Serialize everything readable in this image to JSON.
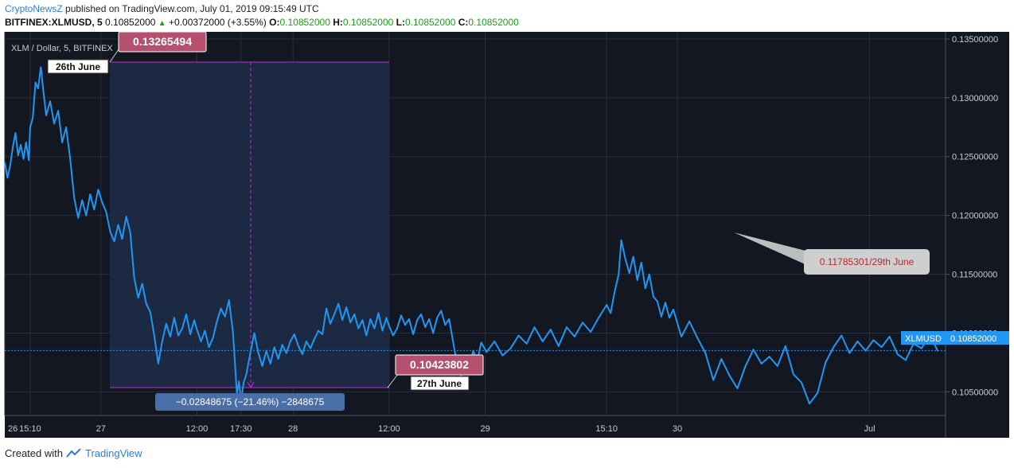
{
  "header": {
    "author": "CryptoNewsZ",
    "published": "published on TradingView.com, July 01, 2019 09:15:49 UTC",
    "symbol": "BITFINEX:XLMUSD, 5",
    "last": "0.10852000",
    "change": "+0.00372000 (+3.55%)",
    "o_label": "O:",
    "o_value": "0.10852000",
    "h_label": "H:",
    "h_value": "0.10852000",
    "l_label": "L:",
    "l_value": "0.10852000",
    "c_label": "C:",
    "c_value": "0.10852000"
  },
  "footer": {
    "created_with": "Created with",
    "brand": "TradingView"
  },
  "colors": {
    "background": "#131722",
    "line": "#2196f3",
    "measure_fill": "#1e2b46",
    "measure_line": "#c42bd6",
    "label_box": "#b5506e",
    "grid": "#2a2e39",
    "price_tag": "#2196f3"
  },
  "chart_data": {
    "type": "line",
    "title": "XLM / Dollar, 5, BITFINEX",
    "series": [
      {
        "name": "XLMUSD",
        "points": [
          [
            "26 Jun 12:00",
            0.1245
          ],
          [
            "26 Jun 12:20",
            0.1232
          ],
          [
            "26 Jun 12:40",
            0.1242
          ],
          [
            "26 Jun 13:00",
            0.1258
          ],
          [
            "26 Jun 13:20",
            0.127
          ],
          [
            "26 Jun 13:40",
            0.1251
          ],
          [
            "26 Jun 14:00",
            0.126
          ],
          [
            "26 Jun 14:20",
            0.1248
          ],
          [
            "26 Jun 14:40",
            0.1262
          ],
          [
            "26 Jun 15:00",
            0.1247
          ],
          [
            "26 Jun 15:10",
            0.1275
          ],
          [
            "26 Jun 15:30",
            0.1283
          ],
          [
            "26 Jun 15:50",
            0.1313
          ],
          [
            "26 Jun 16:10",
            0.1308
          ],
          [
            "26 Jun 16:30",
            0.1326
          ],
          [
            "26 Jun 16:50",
            0.1305
          ],
          [
            "26 Jun 17:10",
            0.1285
          ],
          [
            "26 Jun 17:40",
            0.1297
          ],
          [
            "26 Jun 18:10",
            0.1278
          ],
          [
            "26 Jun 18:40",
            0.1289
          ],
          [
            "26 Jun 19:10",
            0.1262
          ],
          [
            "26 Jun 19:40",
            0.1275
          ],
          [
            "26 Jun 20:10",
            0.1248
          ],
          [
            "26 Jun 20:40",
            0.1215
          ],
          [
            "26 Jun 21:10",
            0.1198
          ],
          [
            "26 Jun 21:40",
            0.1213
          ],
          [
            "26 Jun 22:10",
            0.12
          ],
          [
            "26 Jun 22:40",
            0.1218
          ],
          [
            "26 Jun 23:10",
            0.1205
          ],
          [
            "26 Jun 23:40",
            0.1222
          ],
          [
            "27 Jun 00:10",
            0.1211
          ],
          [
            "27 Jun 00:40",
            0.1203
          ],
          [
            "27 Jun 01:10",
            0.1186
          ],
          [
            "27 Jun 01:40",
            0.1178
          ],
          [
            "27 Jun 02:10",
            0.1192
          ],
          [
            "27 Jun 02:40",
            0.118
          ],
          [
            "27 Jun 03:10",
            0.1199
          ],
          [
            "27 Jun 03:40",
            0.1186
          ],
          [
            "27 Jun 04:10",
            0.1147
          ],
          [
            "27 Jun 04:40",
            0.113
          ],
          [
            "27 Jun 05:10",
            0.1142
          ],
          [
            "27 Jun 05:40",
            0.1125
          ],
          [
            "27 Jun 06:10",
            0.1118
          ],
          [
            "27 Jun 06:40",
            0.1098
          ],
          [
            "27 Jun 07:10",
            0.1074
          ],
          [
            "27 Jun 07:40",
            0.1093
          ],
          [
            "27 Jun 08:10",
            0.1108
          ],
          [
            "27 Jun 08:40",
            0.1097
          ],
          [
            "27 Jun 09:10",
            0.1113
          ],
          [
            "27 Jun 09:40",
            0.1098
          ],
          [
            "27 Jun 10:10",
            0.1104
          ],
          [
            "27 Jun 10:40",
            0.1116
          ],
          [
            "27 Jun 11:10",
            0.1099
          ],
          [
            "27 Jun 11:40",
            0.1111
          ],
          [
            "27 Jun 12:00",
            0.1103
          ],
          [
            "27 Jun 12:30",
            0.1093
          ],
          [
            "27 Jun 13:00",
            0.1102
          ],
          [
            "27 Jun 13:30",
            0.1088
          ],
          [
            "27 Jun 14:00",
            0.1096
          ],
          [
            "27 Jun 14:30",
            0.111
          ],
          [
            "27 Jun 15:00",
            0.1121
          ],
          [
            "27 Jun 15:30",
            0.1114
          ],
          [
            "27 Jun 16:00",
            0.1128
          ],
          [
            "27 Jun 16:30",
            0.1101
          ],
          [
            "27 Jun 17:00",
            0.1048
          ],
          [
            "27 Jun 17:15",
            0.1059
          ],
          [
            "27 Jun 17:30",
            0.1042
          ],
          [
            "27 Jun 17:50",
            0.1058
          ],
          [
            "27 Jun 18:10",
            0.1065
          ],
          [
            "27 Jun 18:40",
            0.1083
          ],
          [
            "27 Jun 19:10",
            0.11
          ],
          [
            "27 Jun 19:40",
            0.1083
          ],
          [
            "27 Jun 20:10",
            0.1072
          ],
          [
            "27 Jun 20:40",
            0.1085
          ],
          [
            "27 Jun 21:10",
            0.1074
          ],
          [
            "27 Jun 21:40",
            0.1088
          ],
          [
            "27 Jun 22:10",
            0.1078
          ],
          [
            "27 Jun 22:40",
            0.109
          ],
          [
            "27 Jun 23:10",
            0.1083
          ],
          [
            "27 Jun 23:40",
            0.1093
          ],
          [
            "28 Jun 00:10",
            0.1099
          ],
          [
            "28 Jun 00:40",
            0.1089
          ],
          [
            "28 Jun 01:10",
            0.1082
          ],
          [
            "28 Jun 01:40",
            0.1093
          ],
          [
            "28 Jun 02:10",
            0.1087
          ],
          [
            "28 Jun 02:40",
            0.1095
          ],
          [
            "28 Jun 03:10",
            0.1102
          ],
          [
            "28 Jun 03:40",
            0.1099
          ],
          [
            "28 Jun 04:10",
            0.1121
          ],
          [
            "28 Jun 04:40",
            0.1108
          ],
          [
            "28 Jun 05:10",
            0.1116
          ],
          [
            "28 Jun 05:40",
            0.1125
          ],
          [
            "28 Jun 06:10",
            0.1111
          ],
          [
            "28 Jun 06:40",
            0.1122
          ],
          [
            "28 Jun 07:10",
            0.1109
          ],
          [
            "28 Jun 07:40",
            0.1116
          ],
          [
            "28 Jun 08:10",
            0.1104
          ],
          [
            "28 Jun 08:40",
            0.1111
          ],
          [
            "28 Jun 09:10",
            0.1098
          ],
          [
            "28 Jun 09:40",
            0.1112
          ],
          [
            "28 Jun 10:10",
            0.1104
          ],
          [
            "28 Jun 10:40",
            0.1117
          ],
          [
            "28 Jun 11:10",
            0.1102
          ],
          [
            "28 Jun 11:40",
            0.1113
          ],
          [
            "28 Jun 12:00",
            0.1106
          ],
          [
            "28 Jun 12:30",
            0.1098
          ],
          [
            "28 Jun 13:00",
            0.1104
          ],
          [
            "28 Jun 13:30",
            0.1115
          ],
          [
            "28 Jun 14:00",
            0.1107
          ],
          [
            "28 Jun 14:30",
            0.1112
          ],
          [
            "28 Jun 15:00",
            0.1099
          ],
          [
            "28 Jun 15:30",
            0.1111
          ],
          [
            "28 Jun 16:00",
            0.1116
          ],
          [
            "28 Jun 16:30",
            0.1105
          ],
          [
            "28 Jun 17:00",
            0.1112
          ],
          [
            "28 Jun 17:30",
            0.11
          ],
          [
            "28 Jun 18:00",
            0.1113
          ],
          [
            "28 Jun 18:30",
            0.1119
          ],
          [
            "28 Jun 19:00",
            0.1107
          ],
          [
            "28 Jun 19:30",
            0.1112
          ],
          [
            "28 Jun 20:00",
            0.1092
          ],
          [
            "28 Jun 20:30",
            0.1073
          ],
          [
            "28 Jun 21:00",
            0.1064
          ],
          [
            "28 Jun 21:30",
            0.1081
          ],
          [
            "28 Jun 22:00",
            0.1071
          ],
          [
            "28 Jun 22:30",
            0.1085
          ],
          [
            "28 Jun 23:00",
            0.1076
          ],
          [
            "28 Jun 23:30",
            0.1092
          ],
          [
            "29 Jun 00:10",
            0.1084
          ],
          [
            "29 Jun 01:10",
            0.1093
          ],
          [
            "29 Jun 02:10",
            0.1081
          ],
          [
            "29 Jun 03:10",
            0.1087
          ],
          [
            "29 Jun 04:10",
            0.1098
          ],
          [
            "29 Jun 05:10",
            0.1091
          ],
          [
            "29 Jun 06:10",
            0.1105
          ],
          [
            "29 Jun 07:10",
            0.1093
          ],
          [
            "29 Jun 08:10",
            0.1103
          ],
          [
            "29 Jun 09:10",
            0.1089
          ],
          [
            "29 Jun 10:10",
            0.1105
          ],
          [
            "29 Jun 11:10",
            0.1097
          ],
          [
            "29 Jun 12:10",
            0.1109
          ],
          [
            "29 Jun 13:10",
            0.1101
          ],
          [
            "29 Jun 14:10",
            0.1113
          ],
          [
            "29 Jun 15:10",
            0.1124
          ],
          [
            "29 Jun 15:40",
            0.1117
          ],
          [
            "29 Jun 16:10",
            0.1135
          ],
          [
            "29 Jun 16:40",
            0.115
          ],
          [
            "29 Jun 17:00",
            0.1179
          ],
          [
            "29 Jun 17:30",
            0.1163
          ],
          [
            "29 Jun 18:00",
            0.1151
          ],
          [
            "29 Jun 18:30",
            0.1165
          ],
          [
            "29 Jun 19:00",
            0.1145
          ],
          [
            "29 Jun 19:30",
            0.116
          ],
          [
            "29 Jun 20:00",
            0.1138
          ],
          [
            "29 Jun 20:30",
            0.115
          ],
          [
            "29 Jun 21:00",
            0.1131
          ],
          [
            "29 Jun 21:30",
            0.1127
          ],
          [
            "29 Jun 22:00",
            0.1114
          ],
          [
            "29 Jun 22:30",
            0.1126
          ],
          [
            "29 Jun 23:00",
            0.1113
          ],
          [
            "29 Jun 23:30",
            0.112
          ],
          [
            "30 Jun 00:30",
            0.1097
          ],
          [
            "30 Jun 01:30",
            0.111
          ],
          [
            "30 Jun 02:30",
            0.1096
          ],
          [
            "30 Jun 03:30",
            0.1083
          ],
          [
            "30 Jun 04:30",
            0.106
          ],
          [
            "30 Jun 05:30",
            0.1078
          ],
          [
            "30 Jun 06:30",
            0.1064
          ],
          [
            "30 Jun 07:30",
            0.1053
          ],
          [
            "30 Jun 08:30",
            0.1072
          ],
          [
            "30 Jun 09:30",
            0.1086
          ],
          [
            "30 Jun 10:30",
            0.1074
          ],
          [
            "30 Jun 11:30",
            0.108
          ],
          [
            "30 Jun 12:30",
            0.1072
          ],
          [
            "30 Jun 13:30",
            0.1089
          ],
          [
            "30 Jun 14:30",
            0.1065
          ],
          [
            "30 Jun 15:30",
            0.1058
          ],
          [
            "30 Jun 16:30",
            0.104
          ],
          [
            "30 Jun 17:30",
            0.1049
          ],
          [
            "30 Jun 18:30",
            0.1075
          ],
          [
            "30 Jun 19:30",
            0.1088
          ],
          [
            "30 Jun 20:30",
            0.1098
          ],
          [
            "30 Jun 21:30",
            0.1083
          ],
          [
            "30 Jun 22:30",
            0.1093
          ],
          [
            "30 Jun 23:30",
            0.1085
          ],
          [
            "01 Jul 00:30",
            0.1094
          ],
          [
            "01 Jul 01:30",
            0.1088
          ],
          [
            "01 Jul 02:30",
            0.1097
          ],
          [
            "01 Jul 03:30",
            0.1082
          ],
          [
            "01 Jul 04:30",
            0.1077
          ],
          [
            "01 Jul 05:30",
            0.1091
          ],
          [
            "01 Jul 06:30",
            0.1087
          ],
          [
            "01 Jul 07:30",
            0.1099
          ],
          [
            "01 Jul 08:30",
            0.1085
          ]
        ]
      }
    ],
    "x_axis": {
      "ticks": [
        "26",
        "15:10",
        "27",
        "12:00",
        "17:30",
        "28",
        "12:00",
        "29",
        "15:10",
        "30",
        "Jul"
      ]
    },
    "y_axis": {
      "range": [
        0.103,
        0.1356
      ],
      "ticks": [
        "0.10500000",
        "0.11000000",
        "0.11500000",
        "0.12000000",
        "0.12500000",
        "0.13000000",
        "0.13500000"
      ]
    },
    "current_price": {
      "label": "XLMUSD",
      "value": "0.10852000"
    },
    "annotations": {
      "high_price": "0.13265494",
      "high_date": "26th June",
      "low_price": "0.10423802",
      "low_date": "27th June",
      "measure": "−0.02848675 (−21.46%) −2848675",
      "callout": "0.11785301/29th June"
    },
    "grid": true
  }
}
